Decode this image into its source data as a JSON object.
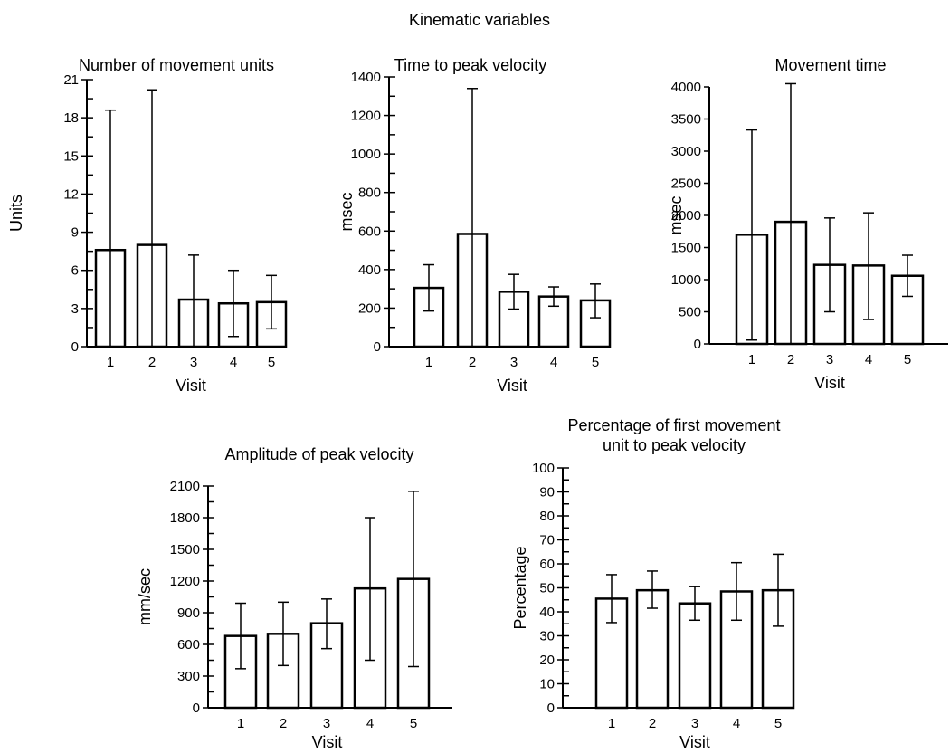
{
  "figure_title": "Kinematic variables",
  "chart_data": [
    {
      "type": "bar",
      "title_lines": [
        "Number of movement units"
      ],
      "xlabel": "Visit",
      "ylabel": "Units",
      "categories": [
        "1",
        "2",
        "3",
        "4",
        "5"
      ],
      "values": [
        7.6,
        8.0,
        3.7,
        3.4,
        3.5
      ],
      "error_upper": [
        18.6,
        20.2,
        7.2,
        6.0,
        5.6
      ],
      "error_lower": [
        0,
        0,
        0,
        0.8,
        1.4
      ],
      "ylim": [
        0,
        21
      ],
      "yticks": [
        "0",
        "3",
        "6",
        "9",
        "12",
        "15",
        "18",
        "21"
      ],
      "minor_step": 1.5,
      "grid": false
    },
    {
      "type": "bar",
      "title_lines": [
        "Time to peak velocity"
      ],
      "xlabel": "Visit",
      "ylabel": "msec",
      "categories": [
        "1",
        "2",
        "3",
        "4",
        "5"
      ],
      "values": [
        305,
        585,
        285,
        260,
        240
      ],
      "error_upper": [
        425,
        1340,
        375,
        310,
        325
      ],
      "error_lower": [
        185,
        0,
        195,
        210,
        150
      ],
      "ylim": [
        0,
        1400
      ],
      "yticks": [
        "0",
        "200",
        "400",
        "600",
        "800",
        "1000",
        "1200",
        "1400"
      ],
      "minor_step": 100,
      "grid": false
    },
    {
      "type": "bar",
      "title_lines": [
        "Movement time"
      ],
      "xlabel": "Visit",
      "ylabel": "msec",
      "categories": [
        "1",
        "2",
        "3",
        "4",
        "5"
      ],
      "values": [
        1700,
        1900,
        1230,
        1220,
        1060
      ],
      "error_upper": [
        3330,
        4050,
        1960,
        2040,
        1380
      ],
      "error_lower": [
        60,
        0,
        500,
        380,
        740
      ],
      "ylim": [
        0,
        4000
      ],
      "yticks": [
        "0",
        "500",
        "1000",
        "1500",
        "2000",
        "2500",
        "3000",
        "3500",
        "4000"
      ],
      "minor_step": 250,
      "grid": false
    },
    {
      "type": "bar",
      "title_lines": [
        "Amplitude of peak velocity"
      ],
      "xlabel": "Visit",
      "ylabel": "mm/sec",
      "categories": [
        "1",
        "2",
        "3",
        "4",
        "5"
      ],
      "values": [
        680,
        700,
        800,
        1130,
        1220
      ],
      "error_upper": [
        990,
        1000,
        1030,
        1800,
        2050
      ],
      "error_lower": [
        370,
        400,
        560,
        450,
        390
      ],
      "ylim": [
        0,
        2100
      ],
      "yticks": [
        "0",
        "300",
        "600",
        "900",
        "1200",
        "1500",
        "1800",
        "2100"
      ],
      "minor_step": 150,
      "grid": false
    },
    {
      "type": "bar",
      "title_lines": [
        "Percentage of first movement",
        "unit to peak velocity"
      ],
      "xlabel": "Visit",
      "ylabel": "Percentage",
      "categories": [
        "1",
        "2",
        "3",
        "4",
        "5"
      ],
      "values": [
        45.5,
        49,
        43.5,
        48.5,
        49
      ],
      "error_upper": [
        55.5,
        57,
        50.5,
        60.5,
        64
      ],
      "error_lower": [
        35.5,
        41.5,
        36.5,
        36.5,
        34
      ],
      "ylim": [
        0,
        100
      ],
      "yticks": [
        "0",
        "10",
        "20",
        "30",
        "40",
        "50",
        "60",
        "70",
        "80",
        "90",
        "100"
      ],
      "minor_step": 5,
      "grid": false
    }
  ]
}
